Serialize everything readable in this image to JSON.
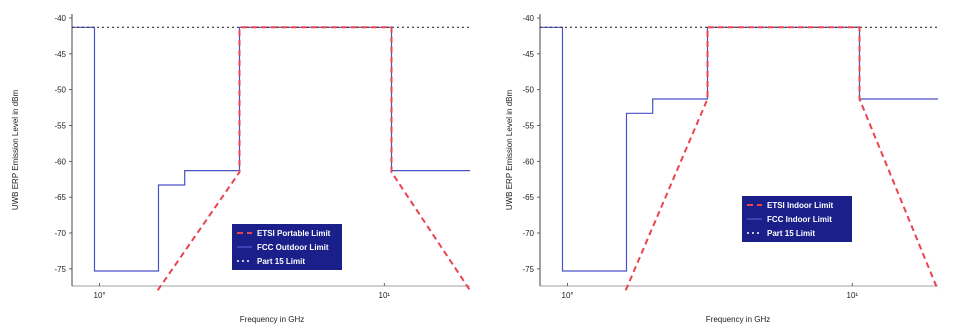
{
  "chart_data": [
    {
      "type": "line",
      "xlabel": "Frequency in GHz",
      "ylabel": "UWB ERP Emission Level in dBm",
      "x_scale": "log",
      "xlim": [
        0.8,
        20
      ],
      "ylim": [
        -76,
        -40
      ],
      "y_ticks": [
        -40,
        -45,
        -50,
        -55,
        -60,
        -65,
        -70,
        -75
      ],
      "x_ticks": [
        {
          "value": 1,
          "label": "10°"
        },
        {
          "value": 10,
          "label": "10¹"
        }
      ],
      "grid": false,
      "legend_position": "bottom-center",
      "series": [
        {
          "name": "ETSI Portable Limit",
          "color": "#e8454f",
          "dash": "6,4",
          "x": [
            1.6,
            3.1,
            3.1,
            10.6,
            10.6,
            20
          ],
          "y": [
            -78,
            -61.5,
            -41.3,
            -41.3,
            -61.5,
            -78
          ]
        },
        {
          "name": "FCC Outdoor Limit",
          "color": "#4a52c8",
          "dash": "",
          "x": [
            0.8,
            0.96,
            0.96,
            1.61,
            1.61,
            1.99,
            1.99,
            3.1,
            3.1,
            10.6,
            10.6,
            20
          ],
          "y": [
            -41.3,
            -41.3,
            -75.3,
            -75.3,
            -63.3,
            -63.3,
            -61.3,
            -61.3,
            -41.3,
            -41.3,
            -61.3,
            -61.3
          ]
        },
        {
          "name": "Part 15 Limit",
          "color": "#333333",
          "dash": "2,3",
          "x": [
            0.8,
            20
          ],
          "y": [
            -41.3,
            -41.3
          ]
        }
      ]
    },
    {
      "type": "line",
      "xlabel": "Frequency in GHz",
      "ylabel": "UWB ERP Emission Level in dBm",
      "x_scale": "log",
      "xlim": [
        0.8,
        20
      ],
      "ylim": [
        -76,
        -40
      ],
      "y_ticks": [
        -40,
        -45,
        -50,
        -55,
        -60,
        -65,
        -70,
        -75
      ],
      "x_ticks": [
        {
          "value": 1,
          "label": "10°"
        },
        {
          "value": 10,
          "label": "10¹"
        }
      ],
      "grid": false,
      "legend_position": "bottom-center",
      "series": [
        {
          "name": "ETSI Indoor Limit",
          "color": "#e8454f",
          "dash": "6,4",
          "x": [
            1.6,
            3.1,
            3.1,
            10.6,
            10.6,
            20
          ],
          "y": [
            -78,
            -51.3,
            -41.3,
            -41.3,
            -51.3,
            -78
          ]
        },
        {
          "name": "FCC Indoor Limit",
          "color": "#4a52c8",
          "dash": "",
          "x": [
            0.8,
            0.96,
            0.96,
            1.61,
            1.61,
            1.99,
            1.99,
            3.1,
            3.1,
            10.6,
            10.6,
            20
          ],
          "y": [
            -41.3,
            -41.3,
            -75.3,
            -75.3,
            -53.3,
            -53.3,
            -51.3,
            -51.3,
            -41.3,
            -41.3,
            -51.3,
            -51.3
          ]
        },
        {
          "name": "Part 15 Limit",
          "color": "#333333",
          "dash": "2,3",
          "x": [
            0.8,
            20
          ],
          "y": [
            -41.3,
            -41.3
          ]
        }
      ]
    }
  ],
  "legend_bg": "#1a1f8a",
  "axis_color": "#444444"
}
